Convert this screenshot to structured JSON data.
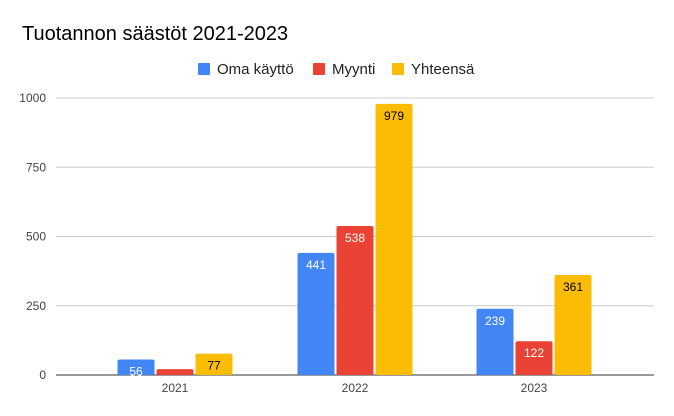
{
  "chart_data": {
    "type": "bar",
    "title": "Tuotannon säästöt 2021-2023",
    "categories": [
      "2021",
      "2022",
      "2023"
    ],
    "series": [
      {
        "name": "Oma käyttö",
        "values": [
          56,
          441,
          239
        ],
        "color": "#4285f4",
        "label_color": "#ffffff"
      },
      {
        "name": "Myynti",
        "values": [
          21,
          538,
          122
        ],
        "color": "#ea4335",
        "label_color": "#ffffff"
      },
      {
        "name": "Yhteensä",
        "values": [
          77,
          979,
          361
        ],
        "color": "#fbbc04",
        "label_color": "#000000"
      }
    ],
    "ylim": [
      0,
      1000
    ],
    "yticks": [
      0,
      250,
      500,
      750,
      1000
    ],
    "grid": true,
    "legend_position": "top"
  }
}
